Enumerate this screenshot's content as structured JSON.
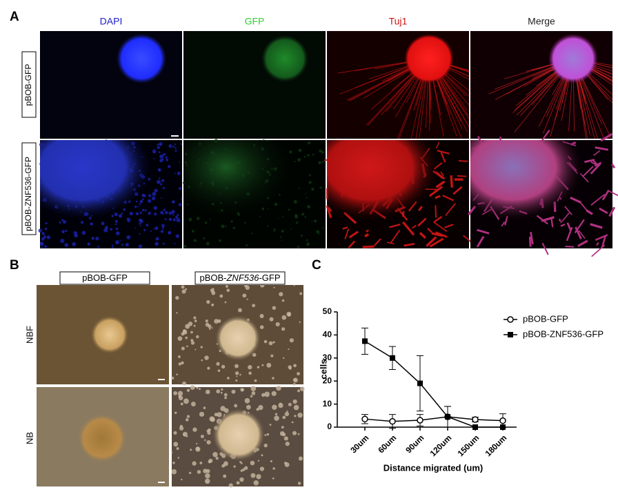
{
  "panels": {
    "a": {
      "label": "A",
      "columns": [
        "DAPI",
        "GFP",
        "Tuj1",
        "Merge"
      ],
      "rows": [
        "pBOB-GFP",
        "pBOB-ZNF536-GFP"
      ]
    },
    "b": {
      "label": "B",
      "columns": [
        [
          "pBOB-GFP"
        ],
        [
          "pBOB-",
          "ZNF536",
          "-GFP"
        ]
      ],
      "rows": [
        "NBF",
        "NB"
      ]
    },
    "c": {
      "label": "C"
    }
  },
  "chart_data": {
    "type": "line",
    "xlabel": "Distance migrated (um)",
    "ylabel": "cells",
    "categories": [
      "30um",
      "60um",
      "90um",
      "120um",
      "150um",
      "180um"
    ],
    "series": [
      {
        "name": "pBOB-GFP",
        "color": "#000000",
        "marker": "circle-open",
        "values": [
          3.5,
          2.5,
          3,
          4.5,
          3.3,
          2.8
        ],
        "errors": [
          2,
          3,
          2.5,
          4.5,
          1,
          3
        ]
      },
      {
        "name": "pBOB-ZNF536-GFP",
        "color": "#000000",
        "marker": "square",
        "values": [
          37.3,
          30,
          19,
          4.5,
          0,
          0
        ],
        "errors": [
          5.7,
          5,
          12,
          4.5,
          0,
          0
        ]
      }
    ],
    "ylim": [
      0,
      50
    ],
    "yticks": [
      0,
      10,
      20,
      30,
      40,
      50
    ],
    "legend": "upper-right"
  }
}
